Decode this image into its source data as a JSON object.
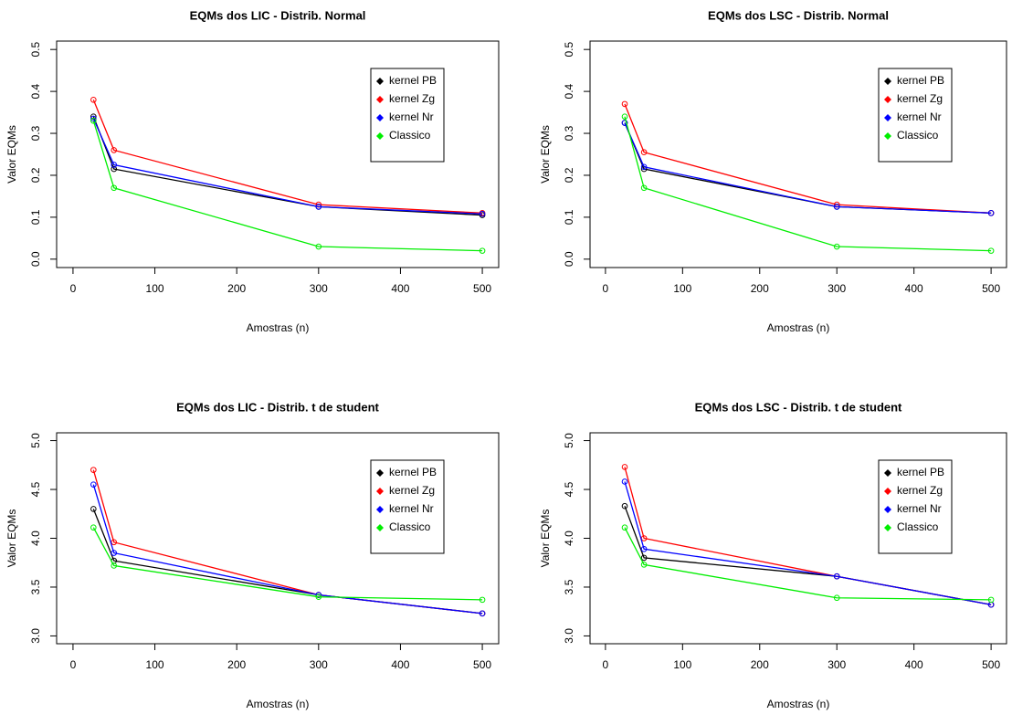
{
  "chart_data": [
    {
      "type": "line",
      "title": "EQMs dos LIC - Distrib. Normal",
      "x_label": "Amostras (n)",
      "y_label": "Valor EQMs",
      "x": [
        25,
        50,
        300,
        500
      ],
      "xlim": [
        -20,
        520
      ],
      "xticks": [
        0,
        100,
        200,
        300,
        400,
        500
      ],
      "ylim": [
        -0.02,
        0.52
      ],
      "yticks": [
        {
          "value": 0,
          "label": "0.0"
        },
        0.1,
        0.2,
        0.3,
        0.4,
        0.5
      ],
      "legend": "top-right",
      "series": [
        {
          "name": "kernel PB",
          "color": "#000000",
          "values": [
            0.34,
            0.215,
            0.125,
            0.105
          ]
        },
        {
          "name": "kernel Zg",
          "color": "#ff0000",
          "values": [
            0.38,
            0.26,
            0.13,
            0.11
          ]
        },
        {
          "name": "kernel Nr",
          "color": "#0000ff",
          "values": [
            0.335,
            0.225,
            0.125,
            0.108
          ]
        },
        {
          "name": "Classico",
          "color": "#00ee00",
          "values": [
            0.33,
            0.17,
            0.03,
            0.02
          ]
        }
      ]
    },
    {
      "type": "line",
      "title": "EQMs dos LSC - Distrib. Normal",
      "x_label": "Amostras (n)",
      "y_label": "Valor EQMs",
      "x": [
        25,
        50,
        300,
        500
      ],
      "xlim": [
        -20,
        520
      ],
      "xticks": [
        0,
        100,
        200,
        300,
        400,
        500
      ],
      "ylim": [
        -0.02,
        0.52
      ],
      "yticks": [
        {
          "value": 0,
          "label": "0.0"
        },
        0.1,
        0.2,
        0.3,
        0.4,
        0.5
      ],
      "legend": "top-right",
      "series": [
        {
          "name": "kernel PB",
          "color": "#000000",
          "values": [
            0.325,
            0.215,
            0.125,
            0.11
          ]
        },
        {
          "name": "kernel Zg",
          "color": "#ff0000",
          "values": [
            0.37,
            0.255,
            0.13,
            0.11
          ]
        },
        {
          "name": "kernel Nr",
          "color": "#0000ff",
          "values": [
            0.325,
            0.22,
            0.125,
            0.11
          ]
        },
        {
          "name": "Classico",
          "color": "#00ee00",
          "values": [
            0.34,
            0.17,
            0.03,
            0.02
          ]
        }
      ]
    },
    {
      "type": "line",
      "title": "EQMs dos LIC - Distrib. t de student",
      "x_label": "Amostras (n)",
      "y_label": "Valor EQMs",
      "x": [
        25,
        50,
        300,
        500
      ],
      "xlim": [
        -20,
        520
      ],
      "xticks": [
        0,
        100,
        200,
        300,
        400,
        500
      ],
      "ylim": [
        2.92,
        5.08
      ],
      "yticks": [
        {
          "value": 3,
          "label": "3.0"
        },
        3.5,
        {
          "value": 4,
          "label": "4.0"
        },
        4.5,
        {
          "value": 5,
          "label": "5.0"
        }
      ],
      "legend": "top-right",
      "series": [
        {
          "name": "kernel PB",
          "color": "#000000",
          "values": [
            4.3,
            3.77,
            3.42,
            3.23
          ]
        },
        {
          "name": "kernel Zg",
          "color": "#ff0000",
          "values": [
            4.7,
            3.96,
            3.42,
            3.23
          ]
        },
        {
          "name": "kernel Nr",
          "color": "#0000ff",
          "values": [
            4.55,
            3.85,
            3.42,
            3.23
          ]
        },
        {
          "name": "Classico",
          "color": "#00ee00",
          "values": [
            4.11,
            3.72,
            3.4,
            3.37
          ]
        }
      ]
    },
    {
      "type": "line",
      "title": "EQMs dos LSC - Distrib. t de student",
      "x_label": "Amostras (n)",
      "y_label": "Valor EQMs",
      "x": [
        25,
        50,
        300,
        500
      ],
      "xlim": [
        -20,
        520
      ],
      "xticks": [
        0,
        100,
        200,
        300,
        400,
        500
      ],
      "ylim": [
        2.92,
        5.08
      ],
      "yticks": [
        {
          "value": 3,
          "label": "3.0"
        },
        3.5,
        {
          "value": 4,
          "label": "4.0"
        },
        4.5,
        {
          "value": 5,
          "label": "5.0"
        }
      ],
      "legend": "top-right",
      "series": [
        {
          "name": "kernel PB",
          "color": "#000000",
          "values": [
            4.33,
            3.8,
            3.61,
            3.32
          ]
        },
        {
          "name": "kernel Zg",
          "color": "#ff0000",
          "values": [
            4.73,
            4.0,
            3.61,
            3.32
          ]
        },
        {
          "name": "kernel Nr",
          "color": "#0000ff",
          "values": [
            4.58,
            3.89,
            3.61,
            3.32
          ]
        },
        {
          "name": "Classico",
          "color": "#00ee00",
          "values": [
            4.11,
            3.73,
            3.39,
            3.37
          ]
        }
      ]
    }
  ]
}
